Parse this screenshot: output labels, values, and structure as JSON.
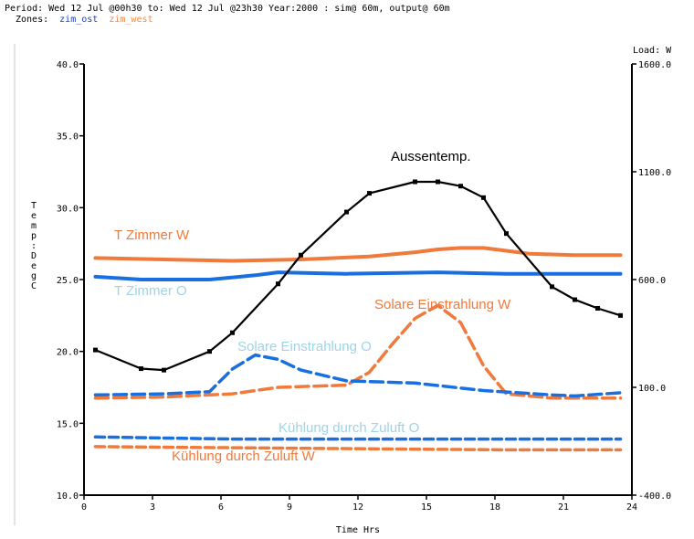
{
  "header": {
    "period_line": "Period: Wed 12 Jul @00h30 to: Wed 12 Jul @23h30 Year:2000 : sim@ 60m, output@ 60m",
    "zones_label": "Zones:",
    "zones": [
      {
        "name": "zim_ost",
        "color": "#1f3fbf"
      },
      {
        "name": "zim_west",
        "color": "#f08a4b"
      }
    ]
  },
  "chart_data": {
    "type": "line",
    "xlabel": "Time Hrs",
    "ylabel": "Temp: DegC",
    "y2label": "Load: W",
    "xlim": [
      0,
      24
    ],
    "ylim": [
      10,
      40
    ],
    "y2lim": [
      -400,
      1600
    ],
    "x_ticks": [
      "0",
      "3",
      "6",
      "9",
      "12",
      "15",
      "18",
      "21",
      "24"
    ],
    "y_ticks": [
      "10.0",
      "15.0",
      "20.0",
      "25.0",
      "30.0",
      "35.0",
      "40.0"
    ],
    "y2_ticks": [
      "-400.0",
      "100.0",
      "600.0",
      "1100.0",
      "1600.0"
    ],
    "grid": false,
    "series": [
      {
        "name": "Aussentemp.",
        "axis": "left",
        "color": "#000000",
        "dash": "none",
        "width": 2.2,
        "markers": true,
        "x": [
          0.5,
          2.5,
          3.5,
          5.5,
          6.5,
          8.5,
          9.5,
          11.5,
          12.5,
          14.5,
          15.5,
          16.5,
          17.5,
          18.5,
          20.5,
          21.5,
          22.5,
          23.5
        ],
        "y": [
          20.1,
          18.8,
          18.7,
          20.0,
          21.3,
          24.7,
          26.7,
          29.7,
          31.0,
          31.8,
          31.8,
          31.5,
          30.7,
          28.2,
          24.5,
          23.6,
          23.0,
          22.5
        ]
      },
      {
        "name": "T Zimmer W",
        "axis": "left",
        "color": "#f07a3c",
        "dash": "none",
        "width": 4,
        "markers": false,
        "x": [
          0.5,
          3.5,
          6.5,
          9.5,
          12.5,
          14.5,
          15.5,
          16.5,
          17.5,
          18.5,
          19.5,
          21.5,
          23.5
        ],
        "y": [
          26.5,
          26.4,
          26.3,
          26.4,
          26.6,
          26.9,
          27.1,
          27.2,
          27.2,
          27.0,
          26.8,
          26.7,
          26.7
        ]
      },
      {
        "name": "T Zimmer O",
        "axis": "left",
        "color": "#1a6fe0",
        "dash": "none",
        "width": 4,
        "markers": false,
        "x": [
          0.5,
          2.5,
          5.5,
          7.5,
          8.5,
          11.5,
          15.5,
          18.5,
          21.5,
          23.5
        ],
        "y": [
          25.2,
          25.0,
          25.0,
          25.3,
          25.5,
          25.4,
          25.5,
          25.4,
          25.4,
          25.4
        ]
      },
      {
        "name": "Solare Einstrahlung W",
        "axis": "right",
        "color": "#f07a3c",
        "dash": "14,6",
        "width": 3.5,
        "markers": false,
        "x": [
          0.5,
          3.5,
          6.5,
          8.5,
          11.5,
          12.5,
          13.5,
          14.5,
          15.5,
          16.5,
          17.5,
          18.5,
          20.5,
          23.5
        ],
        "y": [
          50,
          55,
          70,
          100,
          110,
          170,
          300,
          420,
          480,
          400,
          200,
          70,
          50,
          50
        ]
      },
      {
        "name": "Solare Einstrahlung O",
        "axis": "right",
        "color": "#1a6fe0",
        "dash": "14,6",
        "width": 3.5,
        "markers": false,
        "x": [
          0.5,
          3.5,
          5.5,
          6.5,
          7.5,
          8.5,
          9.5,
          11.5,
          14.5,
          17.5,
          20.5,
          21.5,
          23.5
        ],
        "y": [
          65,
          70,
          80,
          185,
          250,
          230,
          180,
          130,
          120,
          85,
          65,
          60,
          75
        ]
      },
      {
        "name": "Kühlung durch Zuluft O",
        "axis": "right",
        "color": "#1a6fe0",
        "dash": "10,5",
        "width": 3.5,
        "markers": false,
        "x": [
          0.5,
          6.5,
          12.5,
          18.5,
          23.5
        ],
        "y": [
          -130,
          -140,
          -140,
          -140,
          -140
        ]
      },
      {
        "name": "Kühlung durch Zuluft W",
        "axis": "right",
        "color": "#f07a3c",
        "dash": "10,5",
        "width": 3.5,
        "markers": false,
        "x": [
          0.5,
          6.5,
          12.5,
          18.5,
          23.5
        ],
        "y": [
          -175,
          -180,
          -185,
          -190,
          -190
        ]
      }
    ],
    "annotations": [
      {
        "text": "Aussentemp.",
        "color": "#000000"
      },
      {
        "text": "T Zimmer W",
        "color": "#f07a3c"
      },
      {
        "text": "T Zimmer O",
        "color": "#9fd3e6"
      },
      {
        "text": "Solare Einstrahlung W",
        "color": "#f07a3c"
      },
      {
        "text": "Solare Einstrahlung O",
        "color": "#9fd3e6"
      },
      {
        "text": "Kühlung durch Zuluft O",
        "color": "#9fd3e6"
      },
      {
        "text": "Kühlung durch Zuluft W",
        "color": "#f07a3c"
      }
    ]
  }
}
